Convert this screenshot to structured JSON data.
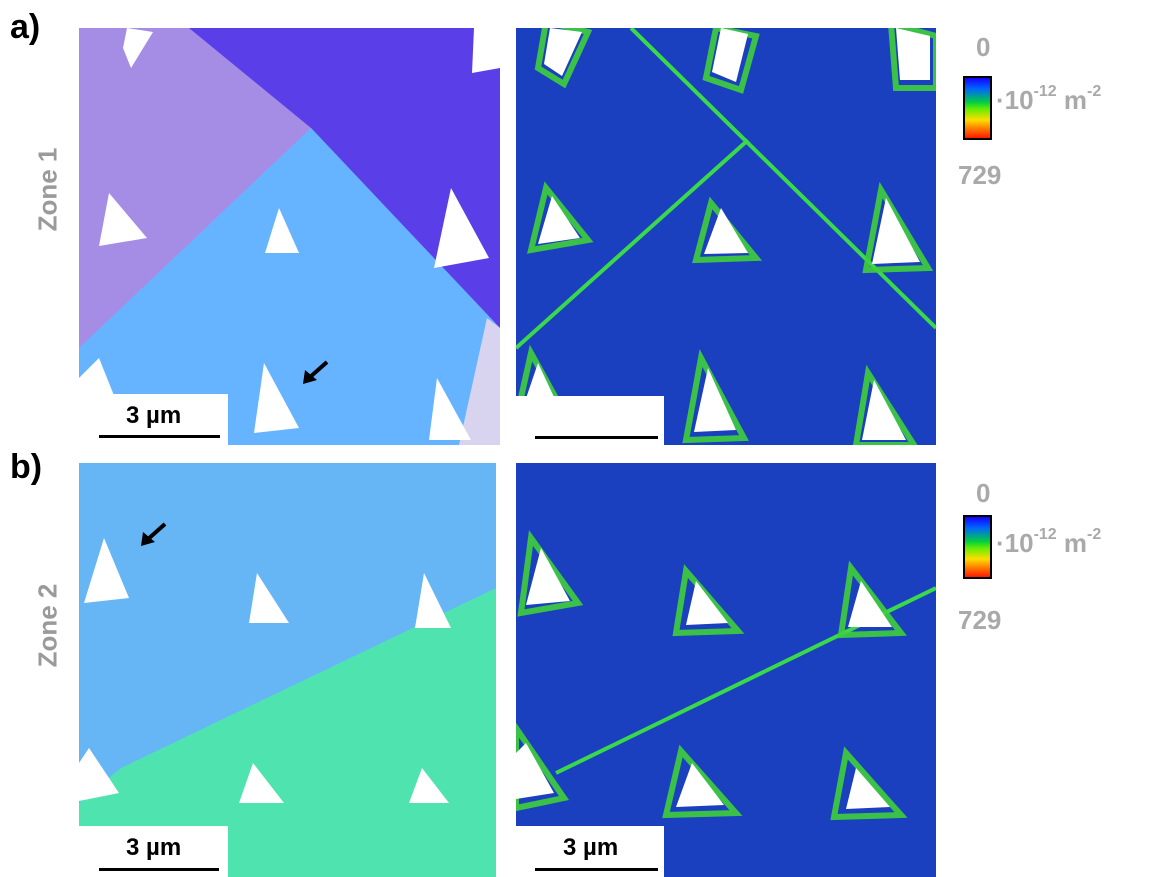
{
  "panels": [
    {
      "letter": "a)",
      "zone_label": "Zone 1",
      "left_scale": "3 µm",
      "right_scale": ""
    },
    {
      "letter": "b)",
      "zone_label": "Zone 2",
      "left_scale": "3 µm",
      "right_scale": "3 µm"
    }
  ],
  "colorbar": {
    "min_label": "0",
    "max_label": "729",
    "unit_prefix": "·10",
    "unit_exp": "-12",
    "unit_mid": " m",
    "unit_exp2": "-2",
    "colors": [
      "#1500ff",
      "#0066ff",
      "#00cc44",
      "#66ee00",
      "#ffdd00",
      "#ff7700",
      "#ff1a00"
    ]
  },
  "colors": {
    "grain_lavender": "#a58de6",
    "grain_blue_violet": "#5a3ee8",
    "grain_light_blue": "#66b4ff",
    "grain_sky_blue": "#66b6f5",
    "grain_aqua_green": "#4fe3b0",
    "gnd_background": "#1a40c0",
    "gnd_high": "#39d94a",
    "indent_white": "#ffffff"
  },
  "icons": [
    "arrow-icon"
  ]
}
